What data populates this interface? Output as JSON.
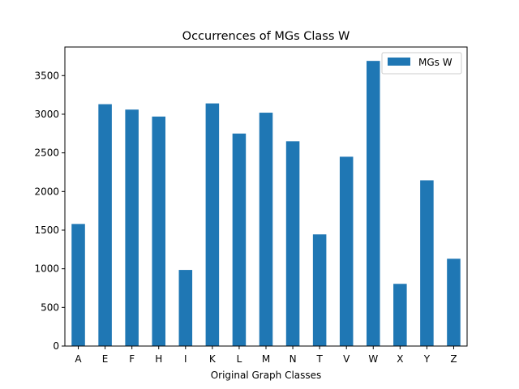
{
  "chart_data": {
    "type": "bar",
    "title": "Occurrences of MGs Class W",
    "xlabel": "Original Graph Classes",
    "ylabel": "",
    "categories": [
      "A",
      "E",
      "F",
      "H",
      "I",
      "K",
      "L",
      "M",
      "N",
      "T",
      "V",
      "W",
      "X",
      "Y",
      "Z"
    ],
    "series": [
      {
        "name": "MGs W",
        "color": "#1f77b4",
        "values": [
          1580,
          3130,
          3060,
          2970,
          985,
          3140,
          2750,
          3020,
          2650,
          1445,
          2450,
          3690,
          805,
          2145,
          1130
        ]
      }
    ],
    "ylim": [
      0,
      3870
    ],
    "yticks": [
      0,
      500,
      1000,
      1500,
      2000,
      2500,
      3000,
      3500
    ],
    "grid": false,
    "legend_position": "top-right"
  }
}
